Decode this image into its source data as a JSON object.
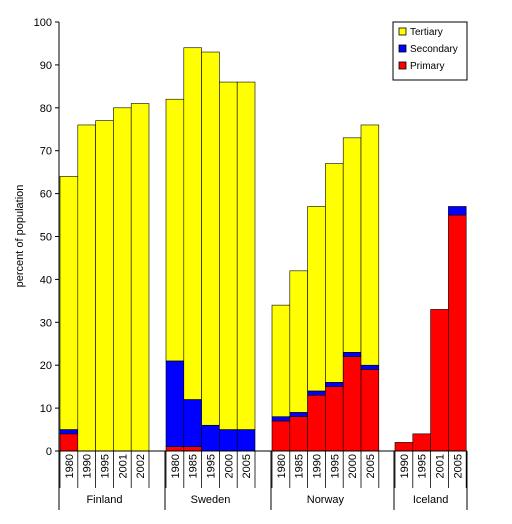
{
  "chart_data": {
    "type": "bar",
    "stacked": true,
    "ylabel": "percent of population",
    "xlabel": "",
    "ylim": [
      0,
      100
    ],
    "yticks": [
      0,
      10,
      20,
      30,
      40,
      50,
      60,
      70,
      80,
      90,
      100
    ],
    "grid": false,
    "legend_position": "top-right",
    "series_order": [
      "Primary",
      "Secondary",
      "Tertiary"
    ],
    "legend_order": [
      "Tertiary",
      "Secondary",
      "Primary"
    ],
    "colors": {
      "Primary": "#ff0000",
      "Secondary": "#0000ff",
      "Tertiary": "#ffff00"
    },
    "groups": [
      {
        "name": "Finland",
        "bars": [
          {
            "year": "1980",
            "Primary": 4,
            "Secondary": 1,
            "Tertiary": 59
          },
          {
            "year": "1990",
            "Primary": 0,
            "Secondary": 0,
            "Tertiary": 76
          },
          {
            "year": "1995",
            "Primary": 0,
            "Secondary": 0,
            "Tertiary": 77
          },
          {
            "year": "2001",
            "Primary": 0,
            "Secondary": 0,
            "Tertiary": 80
          },
          {
            "year": "2002",
            "Primary": 0,
            "Secondary": 0,
            "Tertiary": 81
          }
        ]
      },
      {
        "name": "Sweden",
        "bars": [
          {
            "year": "1980",
            "Primary": 1,
            "Secondary": 20,
            "Tertiary": 61
          },
          {
            "year": "1985",
            "Primary": 1,
            "Secondary": 11,
            "Tertiary": 82
          },
          {
            "year": "1995",
            "Primary": 0,
            "Secondary": 6,
            "Tertiary": 87
          },
          {
            "year": "2000",
            "Primary": 0,
            "Secondary": 5,
            "Tertiary": 81
          },
          {
            "year": "2005",
            "Primary": 0,
            "Secondary": 5,
            "Tertiary": 81
          }
        ]
      },
      {
        "name": "Norway",
        "bars": [
          {
            "year": "1980",
            "Primary": 7,
            "Secondary": 1,
            "Tertiary": 26
          },
          {
            "year": "1985",
            "Primary": 8,
            "Secondary": 1,
            "Tertiary": 33
          },
          {
            "year": "1990",
            "Primary": 13,
            "Secondary": 1,
            "Tertiary": 43
          },
          {
            "year": "1995",
            "Primary": 15,
            "Secondary": 1,
            "Tertiary": 51
          },
          {
            "year": "2000",
            "Primary": 22,
            "Secondary": 1,
            "Tertiary": 50
          },
          {
            "year": "2005",
            "Primary": 19,
            "Secondary": 1,
            "Tertiary": 56
          }
        ]
      },
      {
        "name": "Iceland",
        "bars": [
          {
            "year": "1990",
            "Primary": 2,
            "Secondary": 0,
            "Tertiary": 0
          },
          {
            "year": "1995",
            "Primary": 4,
            "Secondary": 0,
            "Tertiary": 0
          },
          {
            "year": "2001",
            "Primary": 33,
            "Secondary": 0,
            "Tertiary": 0
          },
          {
            "year": "2005",
            "Primary": 55,
            "Secondary": 2,
            "Tertiary": 0
          }
        ]
      }
    ]
  }
}
